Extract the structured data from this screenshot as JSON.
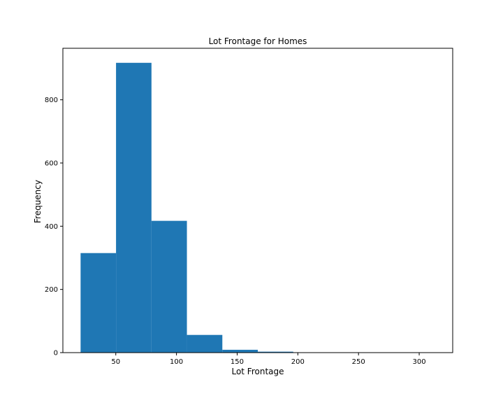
{
  "chart_data": {
    "type": "bar",
    "title": "Lot Frontage for Homes",
    "xlabel": "Lot Frontage",
    "ylabel": "Frequency",
    "bin_edges": [
      21,
      50.2,
      79.4,
      108.6,
      137.8,
      167,
      196.2,
      225.4,
      254.6,
      283.8,
      313
    ],
    "values": [
      315,
      917,
      417,
      56,
      9,
      3,
      0,
      0,
      0,
      1
    ],
    "xlim": [
      6.4,
      327.6
    ],
    "ylim": [
      0,
      963
    ],
    "xticks": [
      50,
      100,
      150,
      200,
      250,
      300
    ],
    "yticks": [
      0,
      200,
      400,
      600,
      800
    ],
    "bar_color": "#1f77b4",
    "grid": false,
    "legend": "none"
  }
}
